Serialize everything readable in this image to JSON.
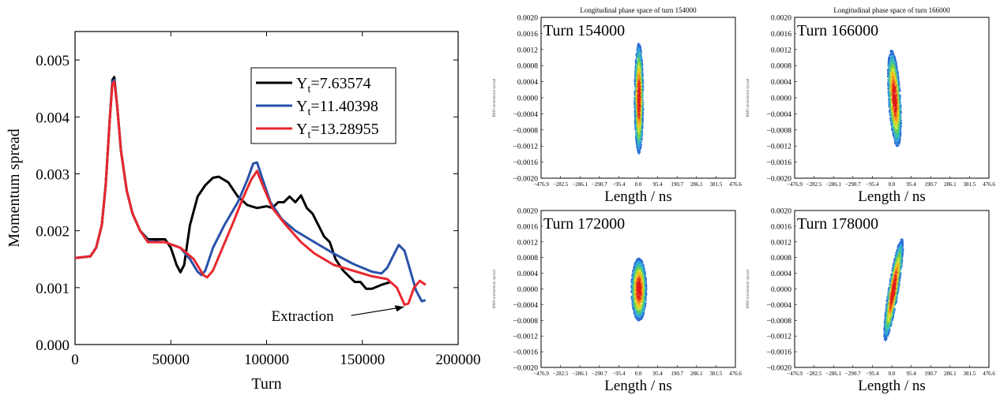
{
  "chart_data": [
    {
      "type": "line",
      "title": "",
      "xlabel": "Turn",
      "ylabel": "Momentum spread",
      "xlim": [
        0,
        200000
      ],
      "ylim": [
        0,
        0.0055
      ],
      "x_ticks": [
        0,
        50000,
        100000,
        150000,
        200000
      ],
      "x_tick_labels": [
        "0",
        "50000",
        "100000",
        "150000",
        "200000"
      ],
      "y_ticks": [
        0,
        0.001,
        0.002,
        0.003,
        0.004,
        0.005
      ],
      "y_tick_labels": [
        "0.000",
        "0.001",
        "0.002",
        "0.003",
        "0.004",
        "0.005"
      ],
      "legend_position": "top-right",
      "grid": false,
      "annotation": {
        "text": "Extraction",
        "x": 173000,
        "y": 0.00069
      },
      "series": [
        {
          "name": "7.63574",
          "name_prefix": "Y",
          "name_sub": "t",
          "color": "#000000",
          "points": [
            [
              0,
              0.00152
            ],
            [
              8000,
              0.00155
            ],
            [
              11000,
              0.0017
            ],
            [
              14000,
              0.0021
            ],
            [
              16000,
              0.0028
            ],
            [
              18000,
              0.0039
            ],
            [
              19500,
              0.00465
            ],
            [
              20500,
              0.0047
            ],
            [
              22000,
              0.0042
            ],
            [
              24000,
              0.0034
            ],
            [
              27000,
              0.0027
            ],
            [
              30000,
              0.0023
            ],
            [
              34000,
              0.002
            ],
            [
              38000,
              0.00185
            ],
            [
              42000,
              0.00185
            ],
            [
              47000,
              0.00185
            ],
            [
              50000,
              0.0017
            ],
            [
              53000,
              0.0014
            ],
            [
              55000,
              0.00127
            ],
            [
              57000,
              0.0014
            ],
            [
              60000,
              0.0021
            ],
            [
              64000,
              0.0026
            ],
            [
              68000,
              0.0028
            ],
            [
              72000,
              0.00293
            ],
            [
              75000,
              0.00295
            ],
            [
              80000,
              0.00285
            ],
            [
              85000,
              0.0026
            ],
            [
              90000,
              0.00245
            ],
            [
              95000,
              0.0024
            ],
            [
              100000,
              0.00243
            ],
            [
              103000,
              0.0024
            ],
            [
              106000,
              0.0025
            ],
            [
              109000,
              0.0025
            ],
            [
              112000,
              0.0026
            ],
            [
              115000,
              0.0025
            ],
            [
              118000,
              0.00262
            ],
            [
              121000,
              0.0024
            ],
            [
              124000,
              0.0023
            ],
            [
              127000,
              0.0021
            ],
            [
              130000,
              0.0019
            ],
            [
              133000,
              0.0018
            ],
            [
              136000,
              0.0015
            ],
            [
              140000,
              0.0013
            ],
            [
              143000,
              0.0012
            ],
            [
              146000,
              0.0011
            ],
            [
              149000,
              0.0011
            ],
            [
              152000,
              0.00098
            ],
            [
              155000,
              0.00098
            ],
            [
              160000,
              0.00105
            ],
            [
              165000,
              0.0011
            ]
          ]
        },
        {
          "name": "11.40398",
          "name_prefix": "Y",
          "name_sub": "t",
          "color": "#2951a8",
          "points": [
            [
              0,
              0.00152
            ],
            [
              8000,
              0.00155
            ],
            [
              11000,
              0.0017
            ],
            [
              14000,
              0.0021
            ],
            [
              16000,
              0.0028
            ],
            [
              18000,
              0.0039
            ],
            [
              19500,
              0.00462
            ],
            [
              20500,
              0.00465
            ],
            [
              22000,
              0.0042
            ],
            [
              24000,
              0.0034
            ],
            [
              27000,
              0.0027
            ],
            [
              30000,
              0.0023
            ],
            [
              34000,
              0.002
            ],
            [
              38000,
              0.00182
            ],
            [
              42000,
              0.00181
            ],
            [
              47000,
              0.0018
            ],
            [
              55000,
              0.0017
            ],
            [
              60000,
              0.0015
            ],
            [
              64000,
              0.00128
            ],
            [
              66000,
              0.00122
            ],
            [
              68000,
              0.0013
            ],
            [
              72000,
              0.0017
            ],
            [
              78000,
              0.0021
            ],
            [
              85000,
              0.0025
            ],
            [
              90000,
              0.0029
            ],
            [
              93000,
              0.00318
            ],
            [
              95000,
              0.0032
            ],
            [
              98000,
              0.0029
            ],
            [
              102000,
              0.0025
            ],
            [
              108000,
              0.0022
            ],
            [
              115000,
              0.002
            ],
            [
              125000,
              0.0018
            ],
            [
              135000,
              0.0016
            ],
            [
              145000,
              0.00142
            ],
            [
              150000,
              0.00135
            ],
            [
              155000,
              0.00128
            ],
            [
              160000,
              0.00125
            ],
            [
              163000,
              0.00135
            ],
            [
              166000,
              0.00155
            ],
            [
              169000,
              0.00175
            ],
            [
              172000,
              0.00165
            ],
            [
              175000,
              0.0013
            ],
            [
              178000,
              0.00095
            ],
            [
              181000,
              0.00076
            ],
            [
              183000,
              0.00078
            ]
          ]
        },
        {
          "name": "13.28955",
          "name_prefix": "Y",
          "name_sub": "t",
          "color": "#e8282e",
          "points": [
            [
              0,
              0.00152
            ],
            [
              8000,
              0.00155
            ],
            [
              11000,
              0.0017
            ],
            [
              14000,
              0.0021
            ],
            [
              16000,
              0.0028
            ],
            [
              18000,
              0.0039
            ],
            [
              19500,
              0.00458
            ],
            [
              20500,
              0.00462
            ],
            [
              22000,
              0.0042
            ],
            [
              24000,
              0.0034
            ],
            [
              27000,
              0.0027
            ],
            [
              30000,
              0.0023
            ],
            [
              34000,
              0.002
            ],
            [
              38000,
              0.0018
            ],
            [
              42000,
              0.0018
            ],
            [
              47000,
              0.0018
            ],
            [
              55000,
              0.0017
            ],
            [
              62000,
              0.0015
            ],
            [
              67000,
              0.00122
            ],
            [
              69000,
              0.00118
            ],
            [
              72000,
              0.0013
            ],
            [
              77000,
              0.0017
            ],
            [
              82000,
              0.0021
            ],
            [
              88000,
              0.0026
            ],
            [
              92000,
              0.0029
            ],
            [
              95000,
              0.00305
            ],
            [
              98000,
              0.0028
            ],
            [
              103000,
              0.0024
            ],
            [
              110000,
              0.0021
            ],
            [
              118000,
              0.0018
            ],
            [
              125000,
              0.0016
            ],
            [
              135000,
              0.0014
            ],
            [
              145000,
              0.0013
            ],
            [
              155000,
              0.0012
            ],
            [
              163000,
              0.00115
            ],
            [
              168000,
              0.001
            ],
            [
              170000,
              0.00085
            ],
            [
              172000,
              0.0007
            ],
            [
              174000,
              0.00072
            ],
            [
              177000,
              0.001
            ],
            [
              180000,
              0.00112
            ],
            [
              183000,
              0.00105
            ]
          ]
        }
      ]
    },
    {
      "type": "scatter",
      "title": "Longitudinal phase space of turn 154000",
      "label": "Turn 154000",
      "xlabel": "Length / ns",
      "ylabel": "RMS momentum spread",
      "ylim": [
        -0.002,
        0.002
      ],
      "x_tick_labels": [
        "−476.9",
        "−282.5",
        "−286.1",
        "−290.7",
        "−95.4",
        "0.0",
        "95.4",
        "190.7",
        "286.1",
        "381.5",
        "476.6"
      ],
      "y_tick_labels": [
        "0.0020",
        "0.0016",
        "0.0012",
        "0.0008",
        "0.0004",
        "0.0000",
        "−0.0004",
        "−0.0008",
        "−0.0012",
        "−0.0016",
        "−0.0020"
      ],
      "bunch": {
        "center_x_ns": 0,
        "half_width_ns": 22,
        "half_height": 0.00138,
        "tilt": 0
      }
    },
    {
      "type": "scatter",
      "title": "Longitudinal phase space of turn 166000",
      "label": "Turn 166000",
      "xlabel": "Length / ns",
      "ylabel": "RMS momentum spread",
      "ylim": [
        -0.002,
        0.002
      ],
      "x_tick_labels": [
        "−476.9",
        "−282.5",
        "−286.1",
        "−290.7",
        "−95.4",
        "0.0",
        "95.4",
        "190.7",
        "286.1",
        "381.5",
        "476.6"
      ],
      "y_tick_labels": [
        "0.0020",
        "0.0016",
        "0.0012",
        "0.0008",
        "0.0004",
        "0.0000",
        "−0.0004",
        "−0.0008",
        "−0.0012",
        "−0.0016",
        "−0.0020"
      ],
      "bunch": {
        "center_x_ns": 10,
        "half_width_ns": 30,
        "half_height": 0.0012,
        "tilt": 0.35
      }
    },
    {
      "type": "scatter",
      "title": "",
      "label": "Turn 172000",
      "xlabel": "Length / ns",
      "ylabel": "RMS momentum spread",
      "ylim": [
        -0.002,
        0.002
      ],
      "x_tick_labels": [
        "−476.9",
        "−282.5",
        "−286.1",
        "−290.7",
        "−95.4",
        "0.0",
        "95.4",
        "190.7",
        "286.1",
        "381.5",
        "476.6"
      ],
      "y_tick_labels": [
        "0.0020",
        "0.0016",
        "0.0012",
        "0.0008",
        "0.0004",
        "0.0000",
        "−0.0004",
        "−0.0008",
        "−0.0012",
        "−0.0016",
        "−0.0020"
      ],
      "bunch": {
        "center_x_ns": 0,
        "half_width_ns": 38,
        "half_height": 0.0008,
        "tilt": 0
      }
    },
    {
      "type": "scatter",
      "title": "",
      "label": "Turn 178000",
      "xlabel": "Length / ns",
      "ylabel": "RMS momentum spread",
      "ylim": [
        -0.002,
        0.002
      ],
      "x_tick_labels": [
        "−476.9",
        "−282.5",
        "−286.1",
        "−290.7",
        "−95.4",
        "0.0",
        "95.4",
        "190.7",
        "286.1",
        "381.5",
        "476.6"
      ],
      "y_tick_labels": [
        "0.0020",
        "0.0016",
        "0.0012",
        "0.0008",
        "0.0004",
        "0.0000",
        "−0.0004",
        "−0.0008",
        "−0.0012",
        "−0.0016",
        "−0.0020"
      ],
      "bunch": {
        "center_x_ns": 5,
        "half_width_ns": 25,
        "half_height": 0.0013,
        "tilt": -0.9
      }
    }
  ]
}
